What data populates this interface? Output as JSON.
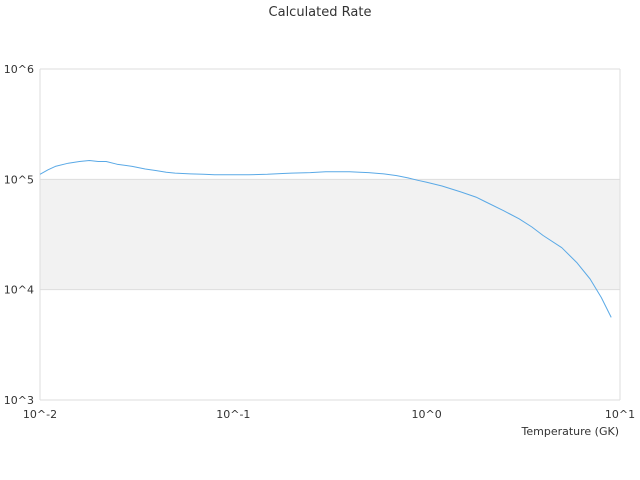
{
  "chart_data": {
    "type": "line",
    "title": "Calculated Rate",
    "xlabel": "Temperature (GK)",
    "ylabel": "",
    "x_scale": "log",
    "y_scale": "log",
    "xlim": [
      0.01,
      10
    ],
    "ylim": [
      1000,
      1000000
    ],
    "x_ticks": [
      "10^-2",
      "10^-1",
      "10^0",
      "10^1"
    ],
    "y_ticks": [
      "10^3",
      "10^4",
      "10^5",
      "10^6"
    ],
    "grid": true,
    "alternating_bands": true,
    "colors": {
      "line": "#5aa9e6",
      "band": "#f2f2f2",
      "grid": "#dddddd"
    },
    "series": [
      {
        "x": [
          0.01,
          0.011,
          0.012,
          0.014,
          0.016,
          0.018,
          0.02,
          0.022,
          0.025,
          0.03,
          0.035,
          0.04,
          0.045,
          0.05,
          0.06,
          0.07,
          0.08,
          0.09,
          0.1,
          0.12,
          0.15,
          0.18,
          0.2,
          0.25,
          0.3,
          0.35,
          0.4,
          0.45,
          0.5,
          0.6,
          0.7,
          0.8,
          0.9,
          1.0,
          1.2,
          1.5,
          1.8,
          2.0,
          2.5,
          3.0,
          3.5,
          4.0,
          5.0,
          6.0,
          7.0,
          8.0,
          9.0
        ],
        "y": [
          111000,
          122000,
          131000,
          140000,
          145000,
          148000,
          145000,
          145000,
          137000,
          131000,
          124000,
          120000,
          116000,
          114000,
          112000,
          111000,
          110000,
          110000,
          110000,
          110000,
          111000,
          113000,
          114000,
          115000,
          117000,
          117000,
          117000,
          116000,
          115000,
          112000,
          108000,
          103000,
          98000,
          94000,
          87000,
          77000,
          69000,
          63000,
          52000,
          44000,
          37000,
          31000,
          24000,
          17500,
          12500,
          8500,
          5600
        ]
      }
    ]
  }
}
